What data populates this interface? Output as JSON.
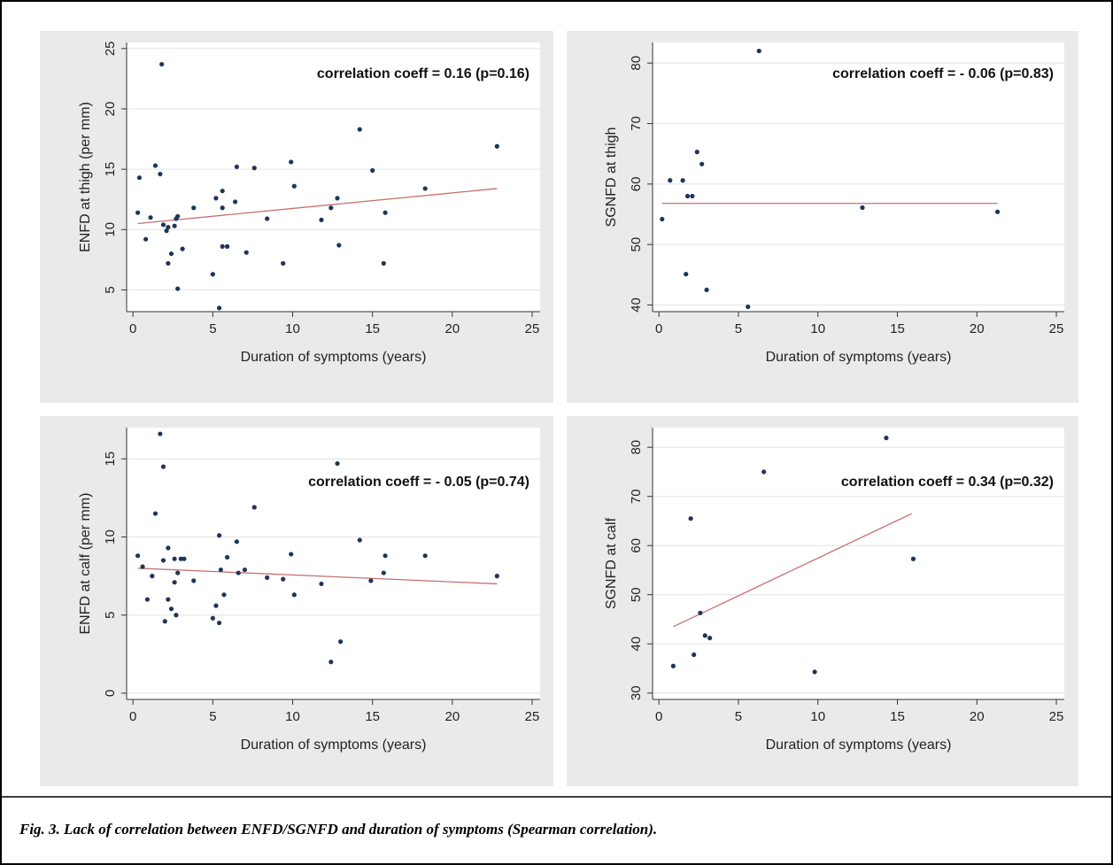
{
  "caption": "Fig. 3. Lack of correlation between ENFD/SGNFD and duration of symptoms (Spearman correlation).",
  "chart_data": [
    {
      "type": "scatter",
      "x_label": "Duration of symptoms (years)",
      "y_label": "ENFD at thigh (per mm)",
      "annotation": "correlation coeff = 0.16 (p=0.16)",
      "x": [
        0.3,
        0.4,
        0.8,
        1.1,
        1.4,
        1.7,
        1.8,
        1.9,
        2.1,
        2.2,
        2.2,
        2.4,
        2.6,
        2.7,
        2.8,
        2.8,
        3.1,
        3.8,
        5.0,
        5.2,
        5.4,
        5.6,
        5.6,
        5.6,
        5.9,
        6.4,
        6.5,
        7.1,
        7.6,
        8.4,
        9.4,
        9.9,
        10.1,
        11.8,
        12.4,
        12.8,
        12.9,
        14.2,
        15.0,
        15.7,
        15.8,
        18.3,
        22.8
      ],
      "y": [
        11.4,
        14.3,
        9.2,
        11.0,
        15.3,
        14.6,
        23.7,
        10.4,
        9.9,
        10.2,
        7.2,
        8.0,
        10.3,
        10.9,
        11.1,
        5.1,
        8.4,
        11.8,
        6.3,
        12.6,
        3.5,
        13.2,
        8.6,
        11.8,
        8.6,
        12.3,
        15.2,
        8.1,
        15.1,
        10.9,
        7.2,
        15.6,
        13.6,
        10.8,
        11.8,
        12.6,
        8.7,
        18.3,
        14.9,
        7.2,
        11.4,
        13.4,
        16.9
      ],
      "trendline": {
        "x": [
          0.3,
          22.8
        ],
        "y": [
          10.5,
          13.4
        ],
        "color": "#c87070"
      },
      "color": "#1c3658",
      "grid": true,
      "xlim": [
        -0.4,
        25.5
      ],
      "ylim": [
        3.2,
        25.5
      ],
      "xticks": [
        0,
        5,
        10,
        15,
        20,
        25
      ],
      "yticks": [
        5,
        10,
        15,
        20,
        25
      ]
    },
    {
      "type": "scatter",
      "x_label": "Duration of symptoms (years)",
      "y_label": "SGNFD at thigh",
      "annotation": "correlation coeff = - 0.06 (p=0.83)",
      "x": [
        0.2,
        0.7,
        1.5,
        1.8,
        2.1,
        1.7,
        2.4,
        2.7,
        3.0,
        5.6,
        6.3,
        12.8,
        21.3
      ],
      "y": [
        54.2,
        60.6,
        60.6,
        58.0,
        58.0,
        45.1,
        65.3,
        63.3,
        42.5,
        39.7,
        82.0,
        56.1,
        55.4
      ],
      "trendline": {
        "x": [
          0.2,
          21.3
        ],
        "y": [
          56.8,
          56.8
        ],
        "color": "#c87070"
      },
      "color": "#1c3658",
      "grid": true,
      "xlim": [
        -0.4,
        25.5
      ],
      "ylim": [
        38.9,
        83.4
      ],
      "xticks": [
        0,
        5,
        10,
        15,
        20,
        25
      ],
      "yticks": [
        40,
        50,
        60,
        70,
        80
      ]
    },
    {
      "type": "scatter",
      "x_label": "Duration of symptoms (years)",
      "y_label": "ENFD at calf (per mm)",
      "annotation": "correlation coeff = - 0.05 (p=0.74)",
      "x": [
        0.3,
        0.6,
        0.9,
        1.2,
        1.4,
        1.7,
        1.9,
        1.9,
        2.0,
        2.2,
        2.2,
        2.4,
        2.6,
        2.6,
        2.7,
        2.8,
        3.0,
        3.2,
        3.8,
        5.0,
        5.2,
        5.4,
        5.4,
        5.5,
        5.7,
        5.9,
        6.5,
        6.6,
        7.0,
        7.6,
        8.4,
        9.4,
        9.9,
        10.1,
        11.8,
        12.4,
        12.8,
        13.0,
        14.2,
        14.9,
        15.7,
        15.8,
        18.3,
        22.8
      ],
      "y": [
        8.8,
        8.1,
        6.0,
        7.5,
        11.5,
        16.6,
        14.5,
        8.5,
        4.6,
        9.3,
        6.0,
        5.4,
        8.6,
        7.1,
        5.0,
        7.7,
        8.6,
        8.6,
        7.2,
        4.8,
        5.6,
        4.5,
        10.1,
        7.9,
        6.3,
        8.7,
        9.7,
        7.7,
        7.9,
        11.9,
        7.4,
        7.3,
        8.9,
        6.3,
        7.0,
        2.0,
        14.7,
        3.3,
        9.8,
        7.2,
        7.7,
        8.8,
        8.8,
        7.5
      ],
      "trendline": {
        "x": [
          0.3,
          22.8
        ],
        "y": [
          8.0,
          7.0
        ],
        "color": "#c87070"
      },
      "color": "#1c3658",
      "grid": true,
      "xlim": [
        -0.4,
        25.5
      ],
      "ylim": [
        -0.4,
        17.0
      ],
      "xticks": [
        0,
        5,
        10,
        15,
        20,
        25
      ],
      "yticks": [
        0,
        5,
        10,
        15
      ]
    },
    {
      "type": "scatter",
      "x_label": "Duration of symptoms (years)",
      "y_label": "SGNFD at calf",
      "annotation": "correlation coeff = 0.34 (p=0.32)",
      "x": [
        0.9,
        2.0,
        2.2,
        2.6,
        2.9,
        3.2,
        6.6,
        9.8,
        14.3,
        16.0
      ],
      "y": [
        35.5,
        65.5,
        37.8,
        46.3,
        41.7,
        41.2,
        75.0,
        34.3,
        81.9,
        57.3
      ],
      "trendline": {
        "x": [
          0.9,
          15.9
        ],
        "y": [
          43.5,
          66.5
        ],
        "color": "#c87070"
      },
      "color": "#1c3658",
      "grid": true,
      "xlim": [
        -0.4,
        25.5
      ],
      "ylim": [
        28.7,
        84.0
      ],
      "xticks": [
        0,
        5,
        10,
        15,
        20,
        25
      ],
      "yticks": [
        30,
        40,
        50,
        60,
        70,
        80
      ]
    }
  ]
}
